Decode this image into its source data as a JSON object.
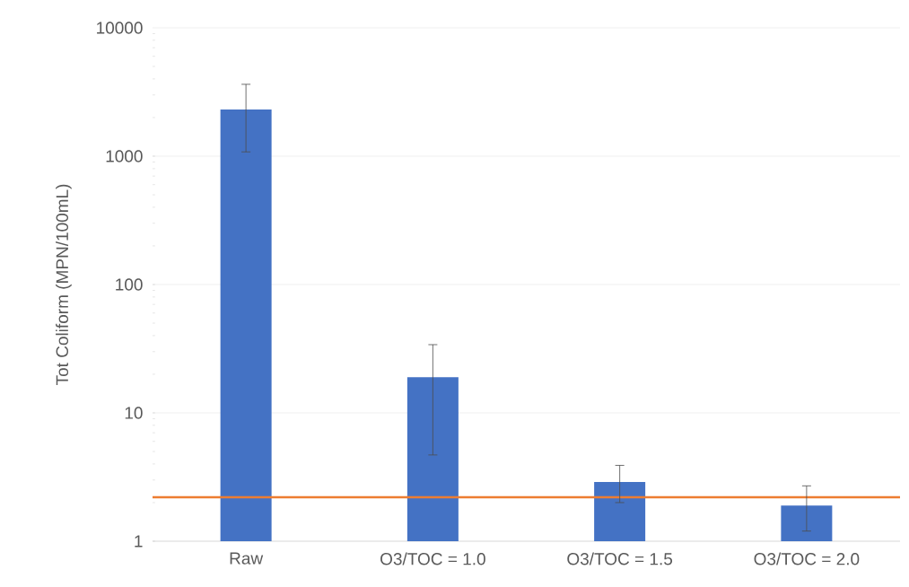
{
  "chart_data": {
    "type": "bar",
    "ylabel": "Tot Coliform (MPN/100mL)",
    "categories": [
      "Raw",
      "O3/TOC = 1.0",
      "O3/TOC = 1.5",
      "O3/TOC = 2.0"
    ],
    "values": [
      2310,
      19,
      2.9,
      1.9
    ],
    "errors": [
      [
        1080,
        3630
      ],
      [
        4.7,
        34
      ],
      [
        2.0,
        3.9
      ],
      [
        1.2,
        2.7
      ]
    ],
    "color": "#4472c4",
    "ylim": [
      1,
      10000
    ],
    "yticks": [
      1,
      10,
      100,
      1000,
      10000
    ],
    "log": true,
    "grid": "y",
    "ref_lines": [
      {
        "axis": "y",
        "value": 2.2,
        "color": "#ed7d31"
      }
    ]
  }
}
